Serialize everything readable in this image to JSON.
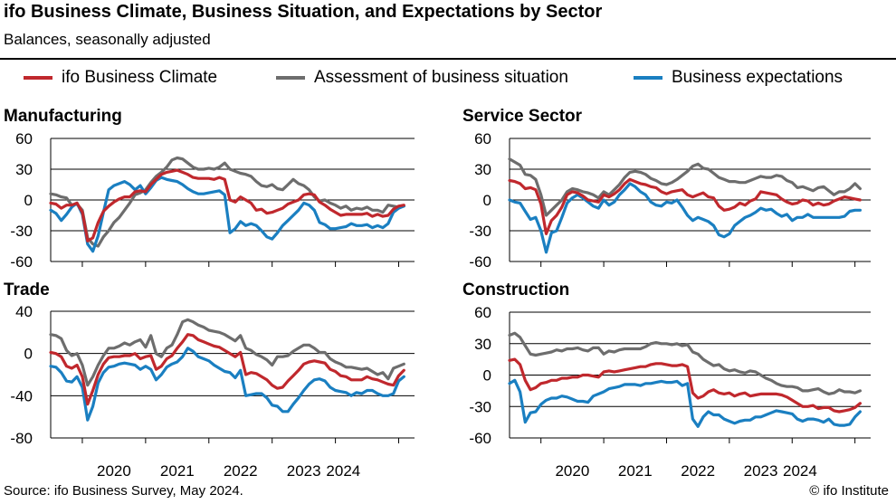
{
  "title": "ifo Business Climate, Business Situation, and Expectations by Sector",
  "subtitle": "Balances, seasonally adjusted",
  "legend": [
    {
      "label": "ifo Business Climate",
      "color": "#c0282d"
    },
    {
      "label": "Assessment of business situation",
      "color": "#6d6d6d"
    },
    {
      "label": "Business expectations",
      "color": "#1a7fc1"
    }
  ],
  "source": "Source: ifo Business Survey, May 2024.",
  "credit": "© ifo Institute",
  "chart_data": [
    {
      "type": "line",
      "title": "Manufacturing",
      "x_start": "2019-07",
      "x_tick_labels": [
        "2020",
        "2021",
        "2022",
        "2023",
        "2024"
      ],
      "ylim": [
        -60,
        60
      ],
      "y_ticks": [
        60,
        30,
        0,
        -30,
        -60
      ],
      "grid": true,
      "series": [
        {
          "name": "ifo Business Climate",
          "color": "#c0282d",
          "values": [
            -3,
            -4,
            -8,
            -5,
            -5,
            -3,
            -12,
            -40,
            -37,
            -22,
            -11,
            -6,
            -2,
            1,
            3,
            3,
            8,
            9,
            8,
            15,
            20,
            25,
            27,
            28,
            29,
            27,
            25,
            22,
            21,
            21,
            21,
            20,
            22,
            20,
            0,
            -2,
            3,
            0,
            -3,
            -10,
            -9,
            -13,
            -12,
            -10,
            -8,
            -4,
            -2,
            0,
            5,
            6,
            5,
            -2,
            -5,
            -9,
            -12,
            -15,
            -14,
            -14,
            -14,
            -14,
            -13,
            -16,
            -14,
            -16,
            -15,
            -9,
            -6,
            -5
          ]
        },
        {
          "name": "Assessment of business situation",
          "color": "#6d6d6d",
          "values": [
            6,
            5,
            3,
            2,
            -5,
            -4,
            -10,
            -37,
            -43,
            -45,
            -36,
            -30,
            -22,
            -17,
            -10,
            -3,
            5,
            7,
            10,
            17,
            23,
            27,
            32,
            39,
            41,
            40,
            36,
            32,
            30,
            30,
            31,
            30,
            32,
            36,
            30,
            28,
            26,
            25,
            23,
            18,
            14,
            13,
            15,
            11,
            10,
            15,
            20,
            16,
            14,
            10,
            3,
            -1,
            0,
            -3,
            -5,
            -8,
            -6,
            -10,
            -8,
            -9,
            -7,
            -10,
            -10,
            -12,
            -5,
            -6,
            -7,
            -6
          ]
        },
        {
          "name": "Business expectations",
          "color": "#1a7fc1",
          "values": [
            -10,
            -13,
            -20,
            -14,
            -7,
            -3,
            -14,
            -43,
            -50,
            -35,
            -12,
            10,
            14,
            16,
            18,
            15,
            10,
            14,
            6,
            12,
            19,
            22,
            20,
            19,
            18,
            15,
            11,
            8,
            6,
            6,
            7,
            8,
            9,
            5,
            -32,
            -28,
            -21,
            -25,
            -23,
            -25,
            -30,
            -36,
            -38,
            -32,
            -25,
            -20,
            -15,
            -10,
            -3,
            -5,
            -10,
            -22,
            -24,
            -28,
            -28,
            -27,
            -26,
            -23,
            -25,
            -25,
            -24,
            -27,
            -25,
            -27,
            -23,
            -12,
            -8,
            -6
          ]
        }
      ]
    },
    {
      "type": "line",
      "title": "Service Sector",
      "x_start": "2019-07",
      "x_tick_labels": [
        "2020",
        "2021",
        "2022",
        "2023",
        "2024"
      ],
      "ylim": [
        -60,
        60
      ],
      "y_ticks": [
        60,
        30,
        0,
        -30,
        -60
      ],
      "grid": true,
      "series": [
        {
          "name": "ifo Business Climate",
          "color": "#c0282d",
          "values": [
            19,
            18,
            16,
            11,
            12,
            10,
            -4,
            -33,
            -20,
            -15,
            -7,
            5,
            8,
            7,
            4,
            0,
            -1,
            -2,
            5,
            3,
            6,
            10,
            16,
            20,
            18,
            16,
            15,
            13,
            12,
            8,
            6,
            8,
            9,
            10,
            5,
            3,
            5,
            7,
            3,
            2,
            -6,
            -10,
            -9,
            -7,
            -3,
            -5,
            -1,
            1,
            8,
            7,
            6,
            5,
            1,
            -2,
            -4,
            -3,
            0,
            -1,
            -5,
            -3,
            -5,
            -4,
            -1,
            1,
            3,
            2,
            1,
            0
          ]
        },
        {
          "name": "Assessment of business situation",
          "color": "#6d6d6d",
          "values": [
            40,
            37,
            34,
            25,
            24,
            20,
            5,
            -15,
            -10,
            -5,
            0,
            8,
            11,
            10,
            8,
            7,
            5,
            2,
            8,
            5,
            10,
            15,
            22,
            27,
            28,
            27,
            25,
            21,
            19,
            16,
            15,
            17,
            20,
            24,
            28,
            33,
            35,
            31,
            30,
            26,
            22,
            20,
            18,
            18,
            17,
            17,
            19,
            21,
            23,
            22,
            22,
            24,
            23,
            19,
            17,
            12,
            13,
            11,
            9,
            12,
            13,
            9,
            5,
            8,
            8,
            11,
            16,
            11
          ]
        },
        {
          "name": "Business expectations",
          "color": "#1a7fc1",
          "values": [
            0,
            -2,
            -3,
            -11,
            -19,
            -17,
            -30,
            -51,
            -32,
            -30,
            -17,
            -3,
            2,
            5,
            2,
            -2,
            -6,
            -8,
            0,
            -5,
            -2,
            5,
            10,
            16,
            13,
            8,
            5,
            -2,
            -5,
            -6,
            -2,
            -3,
            0,
            -7,
            -15,
            -20,
            -17,
            -19,
            -21,
            -25,
            -34,
            -36,
            -33,
            -25,
            -21,
            -17,
            -15,
            -12,
            -8,
            -10,
            -9,
            -13,
            -16,
            -14,
            -20,
            -17,
            -17,
            -14,
            -17,
            -17,
            -17,
            -17,
            -17,
            -17,
            -16,
            -11,
            -10,
            -10
          ]
        }
      ]
    },
    {
      "type": "line",
      "title": "Trade",
      "x_start": "2019-07",
      "x_tick_labels": [
        "2020",
        "2021",
        "2022",
        "2023",
        "2024"
      ],
      "ylim": [
        -80,
        40
      ],
      "y_ticks": [
        40,
        0,
        -40,
        -80
      ],
      "grid": true,
      "series": [
        {
          "name": "ifo Business Climate",
          "color": "#c0282d",
          "values": [
            1,
            0,
            -3,
            -12,
            -14,
            -11,
            -22,
            -48,
            -35,
            -20,
            -10,
            -4,
            -3,
            -3,
            -2,
            -2,
            0,
            -5,
            -3,
            -2,
            -15,
            -12,
            -5,
            -2,
            5,
            11,
            18,
            17,
            13,
            11,
            9,
            7,
            6,
            3,
            0,
            -3,
            1,
            -20,
            -18,
            -19,
            -22,
            -25,
            -30,
            -33,
            -32,
            -26,
            -21,
            -16,
            -10,
            -8,
            -7,
            -8,
            -9,
            -15,
            -17,
            -21,
            -22,
            -25,
            -25,
            -25,
            -22,
            -24,
            -25,
            -27,
            -29,
            -30,
            -21,
            -16
          ]
        },
        {
          "name": "Assessment of business situation",
          "color": "#6d6d6d",
          "values": [
            18,
            17,
            14,
            3,
            -2,
            0,
            -11,
            -30,
            -22,
            -11,
            -2,
            5,
            5,
            7,
            10,
            8,
            11,
            13,
            6,
            17,
            0,
            -3,
            5,
            8,
            18,
            30,
            32,
            30,
            27,
            25,
            22,
            21,
            20,
            18,
            15,
            12,
            17,
            5,
            3,
            -1,
            -3,
            -6,
            -11,
            -3,
            -3,
            -2,
            2,
            5,
            8,
            8,
            5,
            1,
            1,
            -5,
            -8,
            -10,
            -13,
            -13,
            -14,
            -15,
            -14,
            -17,
            -20,
            -18,
            -24,
            -14,
            -12,
            -10
          ]
        },
        {
          "name": "Business expectations",
          "color": "#1a7fc1",
          "values": [
            -12,
            -13,
            -18,
            -26,
            -27,
            -22,
            -32,
            -63,
            -50,
            -28,
            -18,
            -13,
            -12,
            -10,
            -9,
            -10,
            -11,
            -15,
            -12,
            -15,
            -25,
            -20,
            -13,
            -10,
            -8,
            -3,
            5,
            2,
            -3,
            -5,
            -7,
            -11,
            -14,
            -17,
            -18,
            -23,
            -16,
            -40,
            -39,
            -38,
            -38,
            -42,
            -49,
            -50,
            -55,
            -55,
            -48,
            -42,
            -35,
            -29,
            -25,
            -24,
            -26,
            -32,
            -35,
            -36,
            -37,
            -40,
            -37,
            -38,
            -35,
            -35,
            -38,
            -40,
            -40,
            -38,
            -26,
            -22
          ]
        }
      ]
    },
    {
      "type": "line",
      "title": "Construction",
      "x_start": "2019-07",
      "x_tick_labels": [
        "2020",
        "2021",
        "2022",
        "2023",
        "2024"
      ],
      "ylim": [
        -60,
        60
      ],
      "y_ticks": [
        60,
        30,
        0,
        -30,
        -60
      ],
      "grid": true,
      "series": [
        {
          "name": "ifo Business Climate",
          "color": "#c0282d",
          "values": [
            14,
            15,
            10,
            -5,
            -14,
            -12,
            -8,
            -7,
            -5,
            -5,
            -3,
            -3,
            -2,
            -2,
            0,
            0,
            -1,
            -2,
            3,
            4,
            3,
            4,
            5,
            6,
            7,
            8,
            8,
            10,
            11,
            11,
            10,
            9,
            9,
            10,
            8,
            -17,
            -22,
            -20,
            -16,
            -14,
            -17,
            -18,
            -17,
            -20,
            -18,
            -17,
            -20,
            -19,
            -18,
            -18,
            -18,
            -18,
            -19,
            -21,
            -24,
            -27,
            -30,
            -30,
            -29,
            -32,
            -31,
            -31,
            -34,
            -35,
            -34,
            -33,
            -31,
            -27
          ]
        },
        {
          "name": "Assessment of business situation",
          "color": "#6d6d6d",
          "values": [
            38,
            40,
            36,
            28,
            20,
            19,
            20,
            21,
            22,
            24,
            23,
            25,
            25,
            26,
            24,
            23,
            26,
            26,
            20,
            23,
            22,
            24,
            25,
            25,
            25,
            25,
            27,
            30,
            31,
            30,
            30,
            29,
            30,
            28,
            29,
            22,
            20,
            15,
            12,
            9,
            10,
            6,
            4,
            5,
            3,
            2,
            4,
            3,
            0,
            -3,
            -5,
            -8,
            -10,
            -11,
            -11,
            -12,
            -15,
            -15,
            -14,
            -13,
            -16,
            -18,
            -17,
            -14,
            -16,
            -16,
            -17,
            -15
          ]
        },
        {
          "name": "Business expectations",
          "color": "#1a7fc1",
          "values": [
            -8,
            -5,
            -16,
            -45,
            -36,
            -35,
            -28,
            -24,
            -22,
            -22,
            -20,
            -21,
            -23,
            -25,
            -25,
            -26,
            -20,
            -18,
            -16,
            -13,
            -12,
            -11,
            -9,
            -9,
            -9,
            -10,
            -8,
            -8,
            -7,
            -6,
            -7,
            -7,
            -6,
            -10,
            -8,
            -42,
            -49,
            -40,
            -35,
            -38,
            -38,
            -42,
            -44,
            -46,
            -44,
            -43,
            -43,
            -40,
            -40,
            -38,
            -36,
            -34,
            -35,
            -36,
            -37,
            -42,
            -44,
            -42,
            -42,
            -43,
            -45,
            -42,
            -47,
            -48,
            -48,
            -47,
            -40,
            -35
          ]
        }
      ]
    }
  ]
}
